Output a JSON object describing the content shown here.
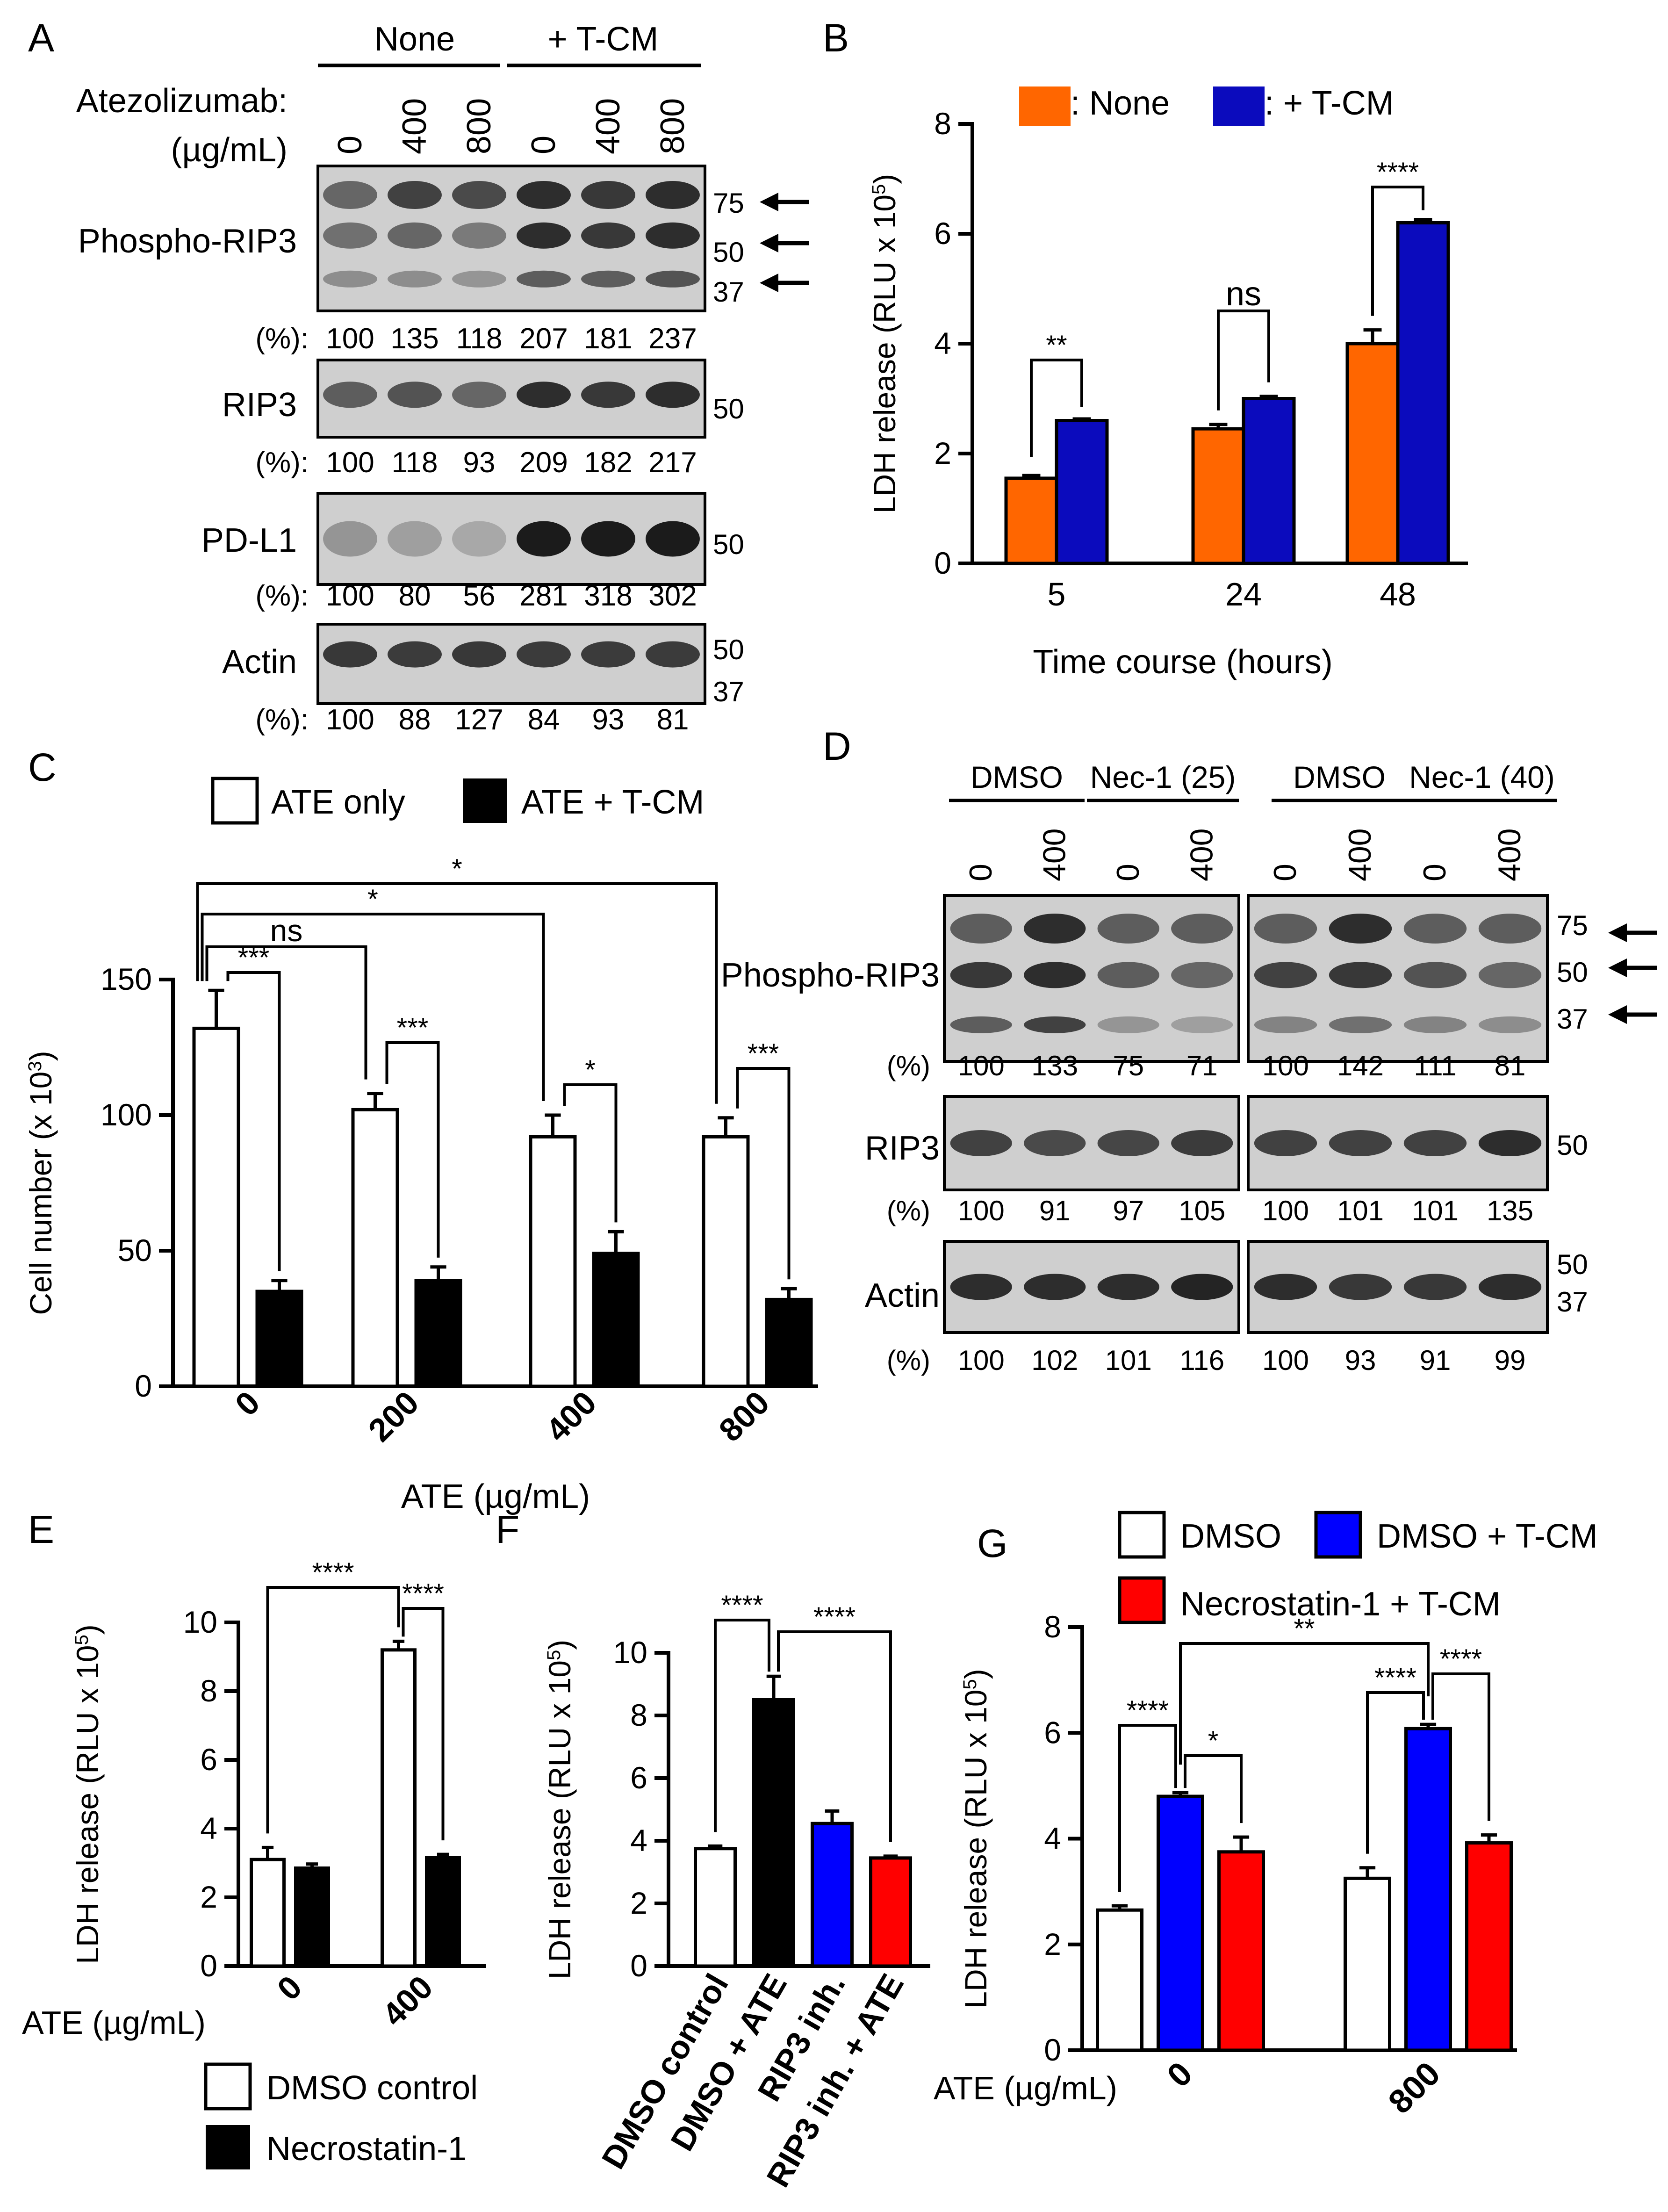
{
  "colors": {
    "orange": "#ff6600",
    "blue": "#0b0bbd",
    "bright_blue": "#0000ff",
    "red": "#ff0000",
    "black": "#000000",
    "white": "#ffffff"
  },
  "panel_letters": [
    "A",
    "B",
    "C",
    "D",
    "E",
    "F",
    "G"
  ],
  "blot_A": {
    "groups": [
      "None",
      "+ T-CM"
    ],
    "treatment_label": "Atezolizumab:",
    "unit_label": "(µg/mL)",
    "lanes": [
      "0",
      "400",
      "800",
      "0",
      "400",
      "800"
    ],
    "pct_label": "(%):",
    "rows": [
      {
        "name": "Phospho-RIP3",
        "markers": [
          "75",
          "50",
          "37"
        ],
        "arrows": 3,
        "pct": [
          "100",
          "135",
          "118",
          "207",
          "181",
          "237"
        ]
      },
      {
        "name": "RIP3",
        "markers": [
          "50"
        ],
        "arrows": 0,
        "pct": [
          "100",
          "118",
          "93",
          "209",
          "182",
          "217"
        ]
      },
      {
        "name": "PD-L1",
        "markers": [
          "50"
        ],
        "arrows": 0,
        "pct": [
          "100",
          "80",
          "56",
          "281",
          "318",
          "302"
        ]
      },
      {
        "name": "Actin",
        "markers": [
          "50",
          "37"
        ],
        "arrows": 0,
        "pct": [
          "100",
          "88",
          "127",
          "84",
          "93",
          "81"
        ]
      }
    ]
  },
  "blot_D": {
    "groups": [
      "DMSO",
      "Nec-1 (25)",
      "DMSO",
      "Nec-1 (40)"
    ],
    "lanes": [
      "0",
      "400",
      "0",
      "400",
      "0",
      "400",
      "0",
      "400"
    ],
    "pct_label": "(%)",
    "rows": [
      {
        "name": "Phospho-RIP3",
        "markers": [
          "75",
          "50",
          "37"
        ],
        "pct": [
          "100",
          "133",
          "75",
          "71",
          "100",
          "142",
          "111",
          "81"
        ]
      },
      {
        "name": "RIP3",
        "markers": [
          "50"
        ],
        "pct": [
          "100",
          "91",
          "97",
          "105",
          "100",
          "101",
          "101",
          "135"
        ]
      },
      {
        "name": "Actin",
        "markers": [
          "50",
          "37"
        ],
        "pct": [
          "100",
          "102",
          "101",
          "116",
          "100",
          "93",
          "91",
          "99"
        ]
      }
    ]
  },
  "chart_data": [
    {
      "panel": "B",
      "type": "bar",
      "categories": [
        "5",
        "24",
        "48"
      ],
      "series": [
        {
          "name": "None",
          "legend_label": ": None",
          "color": "#ff6600",
          "values": [
            1.55,
            2.45,
            4.0
          ],
          "errors": [
            0.05,
            0.08,
            0.25
          ]
        },
        {
          "name": "+ T-CM",
          "legend_label": ": + T-CM",
          "color": "#0b0bbd",
          "values": [
            2.6,
            3.0,
            6.2
          ],
          "errors": [
            0.03,
            0.04,
            0.06
          ]
        }
      ],
      "xlabel": "Time course (hours)",
      "ylabel": "LDH release (RLU x 10",
      "ylabel_exp": "5",
      "ylabel_close": ")",
      "ylim": [
        0,
        8
      ],
      "yticks": [
        "0",
        "2",
        "4",
        "6",
        "8"
      ],
      "annotations": [
        "**",
        "ns",
        "****"
      ]
    },
    {
      "panel": "C",
      "type": "bar",
      "categories": [
        "0",
        "200",
        "400",
        "800"
      ],
      "series": [
        {
          "name": "ATE only",
          "color": "#ffffff",
          "values": [
            132,
            102,
            92,
            92
          ],
          "errors": [
            14,
            6,
            8,
            7
          ]
        },
        {
          "name": "ATE + T-CM",
          "color": "#000000",
          "values": [
            35,
            39,
            49,
            32
          ],
          "errors": [
            4,
            5,
            8,
            4
          ]
        }
      ],
      "xlabel": "ATE (µg/mL)",
      "ylabel": "Cell number (x 10",
      "ylabel_exp": "3",
      "ylabel_close": ")",
      "ylim": [
        0,
        150
      ],
      "yticks": [
        "0",
        "50",
        "100",
        "150"
      ],
      "annotations": [
        "***",
        "***",
        "*",
        "***",
        "ns",
        "*",
        "*"
      ]
    },
    {
      "panel": "E",
      "type": "bar",
      "categories": [
        "0",
        "400"
      ],
      "series": [
        {
          "name": "DMSO control",
          "color": "#ffffff",
          "values": [
            3.1,
            9.2
          ],
          "errors": [
            0.35,
            0.25
          ]
        },
        {
          "name": "Necrostatin-1",
          "color": "#000000",
          "values": [
            2.85,
            3.15
          ],
          "errors": [
            0.12,
            0.1
          ]
        }
      ],
      "xprefix": "ATE (µg/mL)",
      "ylabel": "LDH release (RLU x 10",
      "ylabel_exp": "5",
      "ylabel_close": ")",
      "ylim": [
        0,
        10
      ],
      "yticks": [
        "0",
        "2",
        "4",
        "6",
        "8",
        "10"
      ],
      "annotations": [
        "****",
        "****"
      ]
    },
    {
      "panel": "F",
      "type": "bar",
      "categories": [
        "DMSO control",
        "DMSO + ATE",
        "RIP3 inh.",
        "RIP3 inh. + ATE"
      ],
      "series": [
        {
          "name": "LDH release",
          "colors": [
            "#ffffff",
            "#000000",
            "#0000ff",
            "#ff0000"
          ],
          "values": [
            3.75,
            8.5,
            4.55,
            3.45
          ],
          "errors": [
            0.08,
            0.75,
            0.4,
            0.06
          ]
        }
      ],
      "ylabel": "LDH release (RLU x 10",
      "ylabel_exp": "5",
      "ylabel_close": ")",
      "ylim": [
        0,
        10
      ],
      "yticks": [
        "0",
        "2",
        "4",
        "6",
        "8",
        "10"
      ],
      "annotations": [
        "****",
        "****"
      ]
    },
    {
      "panel": "G",
      "type": "bar",
      "categories": [
        "0",
        "800"
      ],
      "series": [
        {
          "name": "DMSO",
          "color": "#ffffff",
          "values": [
            2.65,
            3.25
          ],
          "errors": [
            0.08,
            0.2
          ]
        },
        {
          "name": "DMSO + T-CM",
          "color": "#0000ff",
          "values": [
            4.8,
            6.08
          ],
          "errors": [
            0.07,
            0.08
          ]
        },
        {
          "name": "Necrostatin-1 + T-CM",
          "color": "#ff0000",
          "values": [
            3.75,
            3.92
          ],
          "errors": [
            0.28,
            0.15
          ]
        }
      ],
      "xprefix": "ATE (µg/mL)",
      "ylabel": "LDH release (RLU x 10",
      "ylabel_exp": "5",
      "ylabel_close": ")",
      "ylim": [
        0,
        8
      ],
      "yticks": [
        "0",
        "2",
        "4",
        "6",
        "8"
      ],
      "annotations": [
        "****",
        "*",
        "****",
        "****",
        "**"
      ]
    }
  ]
}
